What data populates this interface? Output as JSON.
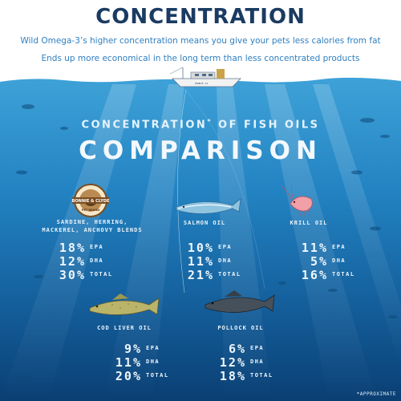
{
  "header": {
    "title": "CONCENTRATION",
    "line1": "Wild Omega-3’s higher concentration means you give your pets less calories from fat",
    "line2": "Ends up more economical in the long term than less concentrated products"
  },
  "boat": {
    "name": "BONNIE II"
  },
  "section": {
    "subtitle": "CONCENTRATION",
    "subtitle_mark": "*",
    "subtitle_rest": " OF FISH OILS",
    "big_title": "COMPARISON"
  },
  "logo": {
    "top_text": "BONNIE & CLYDE",
    "bottom_text": "PET BRAND"
  },
  "labels": {
    "epa": "EPA",
    "dha": "DHA",
    "total": "TOTAL"
  },
  "oils": [
    {
      "name_line1": "SARDINE, HERRING,",
      "name_line2": "MACKEREL, ANCHOVY BLENDS",
      "epa": "18%",
      "dha": "12%",
      "total": "30%"
    },
    {
      "name_line1": "SALMON OIL",
      "epa": "10%",
      "dha": "11%",
      "total": "21%"
    },
    {
      "name_line1": "KRILL OIL",
      "epa": "11%",
      "dha": "5%",
      "total": "16%"
    },
    {
      "name_line1": "COD LIVER OIL",
      "epa": "9%",
      "dha": "11%",
      "total": "20%"
    },
    {
      "name_line1": "POLLOCK OIL",
      "epa": "6%",
      "dha": "12%",
      "total": "18%"
    }
  ],
  "footnote": "*APPROXIMATE",
  "colors": {
    "title": "#1a3b62",
    "text_blue": "#2f7fc0",
    "sea_top": "#3ea2d8",
    "sea_bottom": "#0a3f73"
  }
}
